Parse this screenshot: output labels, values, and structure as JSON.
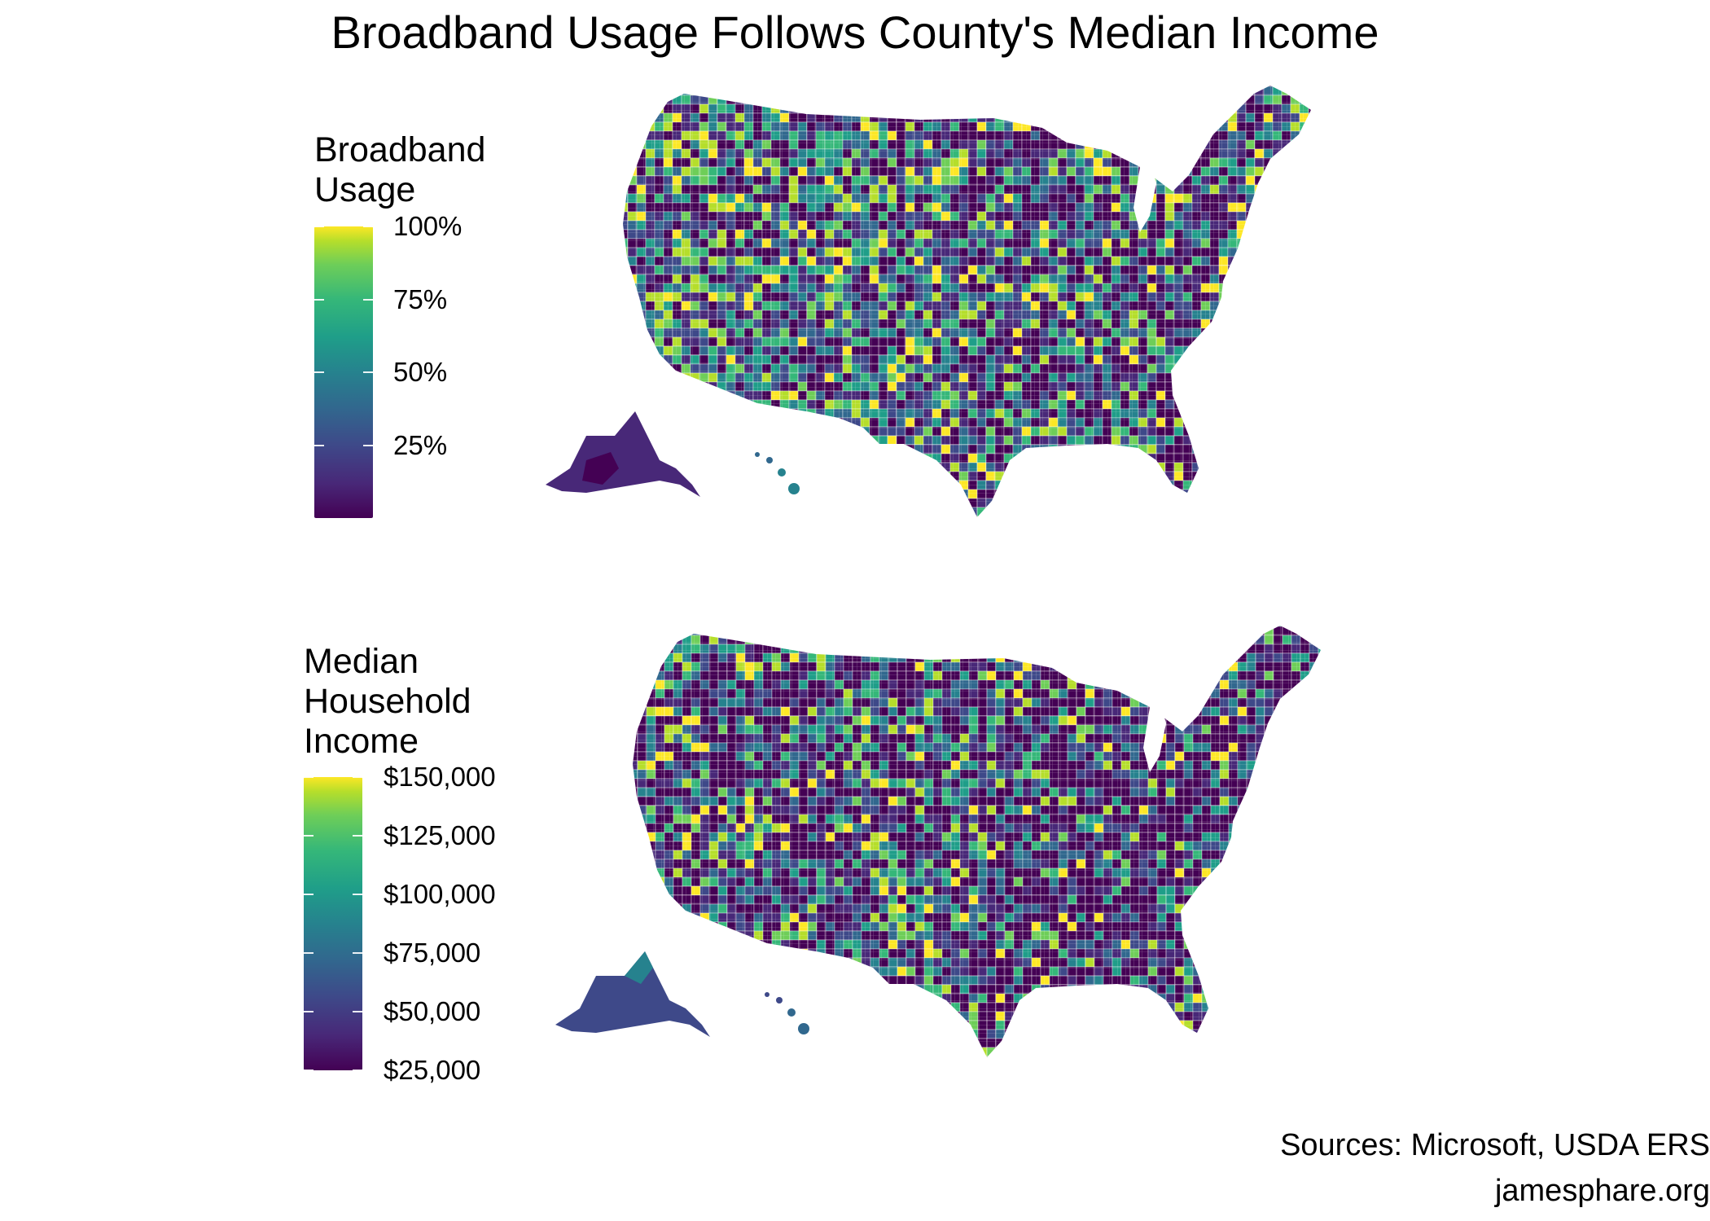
{
  "title": "Broadband Usage Follows County's Median Income",
  "palette": {
    "low": "#440154",
    "midlow": "#3e4989",
    "mid": "#26828e",
    "midhigh": "#35b779",
    "high": "#fde725",
    "border": "#ffffff",
    "missing": "#ffffff"
  },
  "panels": [
    {
      "variable": "Broadband Usage",
      "legend_title_lines": [
        "Broadband",
        "Usage"
      ],
      "scale": {
        "min": 0,
        "max": 100,
        "unit": "%",
        "type": "continuous-viridis"
      },
      "ticks": [
        "100%",
        "75%",
        "50%",
        "25%"
      ],
      "tick_values": [
        100,
        75,
        50,
        25
      ],
      "map": "US counties choropleth (contiguous US, Alaska, Hawaii)"
    },
    {
      "variable": "Median Household Income",
      "legend_title_lines": [
        "Median",
        "Household",
        "Income"
      ],
      "scale": {
        "min": 25000,
        "max": 150000,
        "unit": "$",
        "type": "continuous-viridis"
      },
      "ticks": [
        "$150,000",
        "$125,000",
        "$100,000",
        "$75,000",
        "$50,000",
        "$25,000"
      ],
      "tick_values": [
        150000,
        125000,
        100000,
        75000,
        50000,
        25000
      ],
      "map": "US counties choropleth (contiguous US, Alaska, Hawaii)"
    }
  ],
  "captions": [
    "Sources: Microsoft, USDA ERS",
    "jamesphare.org"
  ]
}
